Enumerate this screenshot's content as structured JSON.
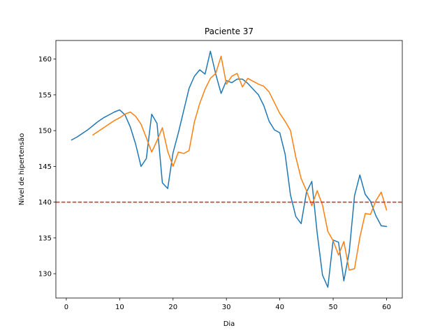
{
  "chart_data": {
    "type": "line",
    "title": "Paciente 37",
    "xlabel": "Dia",
    "ylabel": "Nível de hipertensão",
    "xlim": [
      -1.95,
      62.95
    ],
    "ylim": [
      126.6,
      162.6
    ],
    "xticks": [
      0,
      10,
      20,
      30,
      40,
      50,
      60
    ],
    "yticks": [
      130,
      135,
      140,
      145,
      150,
      155,
      160
    ],
    "grid": false,
    "legend": "none",
    "threshold": {
      "value": 140,
      "color": "#d62728",
      "style": "dashed"
    },
    "series": [
      {
        "color": "#1f77b4",
        "x": [
          1,
          2,
          3,
          4,
          5,
          6,
          7,
          8,
          9,
          10,
          11,
          12,
          13,
          14,
          15,
          16,
          17,
          18,
          19,
          20,
          21,
          22,
          23,
          24,
          25,
          26,
          27,
          28,
          29,
          30,
          31,
          32,
          33,
          34,
          35,
          36,
          37,
          38,
          39,
          40,
          41,
          42,
          43,
          44,
          45,
          46,
          47,
          48,
          49,
          50,
          51,
          52,
          53,
          54,
          55,
          56,
          57,
          58,
          59,
          60
        ],
        "y": [
          148.7,
          149.1,
          149.6,
          150.1,
          150.7,
          151.3,
          151.8,
          152.2,
          152.6,
          152.9,
          152.2,
          150.5,
          148.1,
          145.0,
          146.1,
          152.3,
          151.0,
          142.7,
          141.9,
          146.9,
          149.7,
          152.8,
          155.9,
          157.6,
          158.5,
          157.9,
          161.1,
          157.9,
          155.2,
          157.0,
          156.7,
          157.2,
          157.2,
          156.6,
          155.8,
          155.0,
          153.5,
          151.3,
          150.1,
          149.7,
          146.7,
          141.0,
          138.0,
          137.0,
          141.4,
          142.9,
          135.7,
          129.8,
          128.1,
          134.7,
          134.4,
          129.0,
          133.0,
          140.9,
          143.8,
          141.1,
          140.1,
          138.1,
          136.7,
          136.6
        ]
      },
      {
        "color": "#ff7f0e",
        "x": [
          5,
          6,
          7,
          8,
          9,
          10,
          11,
          12,
          13,
          14,
          15,
          16,
          17,
          18,
          19,
          20,
          21,
          22,
          23,
          24,
          25,
          26,
          27,
          28,
          29,
          30,
          31,
          32,
          33,
          34,
          35,
          36,
          37,
          38,
          39,
          40,
          41,
          42,
          43,
          44,
          45,
          46,
          47,
          48,
          49,
          50,
          51,
          52,
          53,
          54,
          55,
          56,
          57,
          58,
          59,
          60
        ],
        "y": [
          149.4,
          149.9,
          150.4,
          150.9,
          151.4,
          151.8,
          152.3,
          152.6,
          152.0,
          150.9,
          149.0,
          147.0,
          148.6,
          150.4,
          147.1,
          145.0,
          147.0,
          146.8,
          147.2,
          151.2,
          153.8,
          155.8,
          157.3,
          158.0,
          160.4,
          156.5,
          157.6,
          158.0,
          156.1,
          157.3,
          156.9,
          156.5,
          156.2,
          155.4,
          153.9,
          152.4,
          151.3,
          150.0,
          146.3,
          143.3,
          141.6,
          139.5,
          141.6,
          139.6,
          135.9,
          134.6,
          132.6,
          134.5,
          130.5,
          130.7,
          135.1,
          138.4,
          138.3,
          140.2,
          141.4,
          138.9
        ]
      }
    ]
  }
}
